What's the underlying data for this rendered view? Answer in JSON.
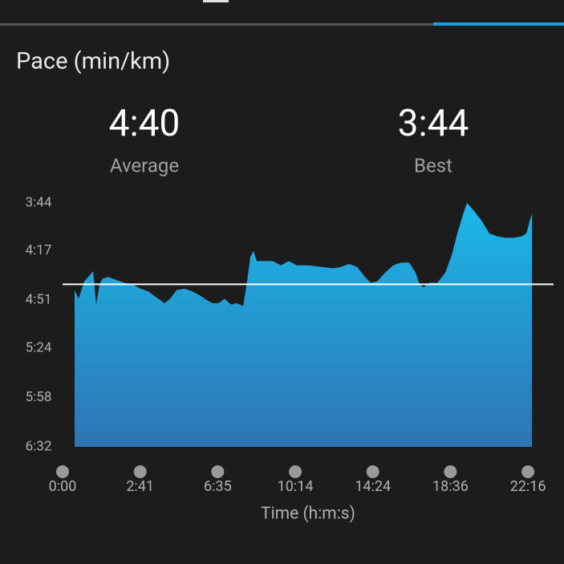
{
  "chart_data": {
    "type": "area",
    "title": "Pace (min/km)",
    "stats": [
      {
        "name": "Average",
        "value": 280,
        "label": "4:40"
      },
      {
        "name": "Best",
        "value": 224,
        "label": "3:44"
      }
    ],
    "x_label": "Time (h:m:s)",
    "color": "#1ab8ea",
    "color_bottom": "#2f74b3",
    "line_color": "#ffffff",
    "xlim": [
      0,
      6.33
    ],
    "ylim": [
      392,
      224
    ],
    "yticks": [
      {
        "value": 224,
        "label": "3:44"
      },
      {
        "value": 257,
        "label": "4:17"
      },
      {
        "value": 291,
        "label": "4:51"
      },
      {
        "value": 324,
        "label": "5:24"
      },
      {
        "value": 358,
        "label": "5:58"
      },
      {
        "value": 392,
        "label": "6:32"
      }
    ],
    "xticks": [
      {
        "value": 0,
        "label": "0:00"
      },
      {
        "value": 1,
        "label": "2:41"
      },
      {
        "value": 2,
        "label": "6:35"
      },
      {
        "value": 3,
        "label": "10:14"
      },
      {
        "value": 4,
        "label": "14:24"
      },
      {
        "value": 5,
        "label": "18:36"
      },
      {
        "value": 6,
        "label": "22:16"
      }
    ],
    "x": [
      0.155,
      0.207,
      0.279,
      0.331,
      0.393,
      0.434,
      0.476,
      0.517,
      0.59,
      0.693,
      0.797,
      0.9,
      1.003,
      1.107,
      1.21,
      1.314,
      1.386,
      1.469,
      1.572,
      1.676,
      1.779,
      1.862,
      1.934,
      2.007,
      2.09,
      2.172,
      2.245,
      2.328,
      2.379,
      2.421,
      2.462,
      2.503,
      2.607,
      2.71,
      2.814,
      2.917,
      3.021,
      3.176,
      3.331,
      3.486,
      3.59,
      3.693,
      3.796,
      3.9,
      3.972,
      4.055,
      4.158,
      4.262,
      4.365,
      4.469,
      4.551,
      4.603,
      4.655,
      4.727,
      4.831,
      4.934,
      5.017,
      5.089,
      5.162,
      5.214,
      5.296,
      5.4,
      5.503,
      5.607,
      5.71,
      5.814,
      5.917,
      5.979,
      6.052
    ],
    "values": [
      284,
      290,
      278,
      275,
      271,
      294,
      280,
      276,
      275,
      277,
      279,
      280,
      283,
      285,
      289,
      293,
      290,
      284,
      283,
      285,
      288,
      291,
      293,
      293,
      290,
      294,
      293,
      295,
      278,
      261,
      257,
      264,
      264,
      264,
      267,
      264,
      267,
      267,
      268,
      269,
      268,
      266,
      268,
      275,
      279,
      278,
      272,
      267,
      265,
      265,
      272,
      280,
      282,
      279,
      279,
      272,
      260,
      245,
      232,
      224,
      229,
      236,
      245,
      247,
      248,
      248,
      247,
      245,
      231
    ]
  }
}
